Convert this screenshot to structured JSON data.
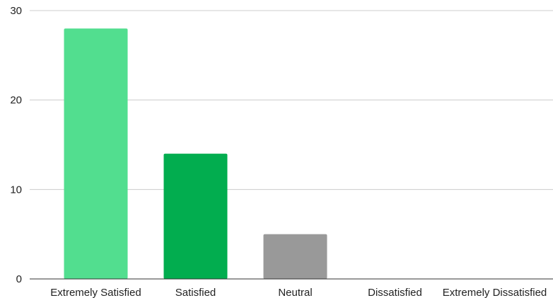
{
  "chart_data": {
    "type": "bar",
    "categories": [
      "Extremely Satisfied",
      "Satisfied",
      "Neutral",
      "Dissatisfied",
      "Extremely Dissatisfied"
    ],
    "values": [
      28,
      14,
      5,
      0,
      0
    ],
    "colors": [
      "#52de8f",
      "#02ad4f",
      "#999999",
      "#999999",
      "#999999"
    ],
    "title": "",
    "xlabel": "",
    "ylabel": "",
    "ylim": [
      0,
      30
    ],
    "yticks": [
      0,
      10,
      20,
      30
    ],
    "grid": true,
    "legend": "none"
  }
}
